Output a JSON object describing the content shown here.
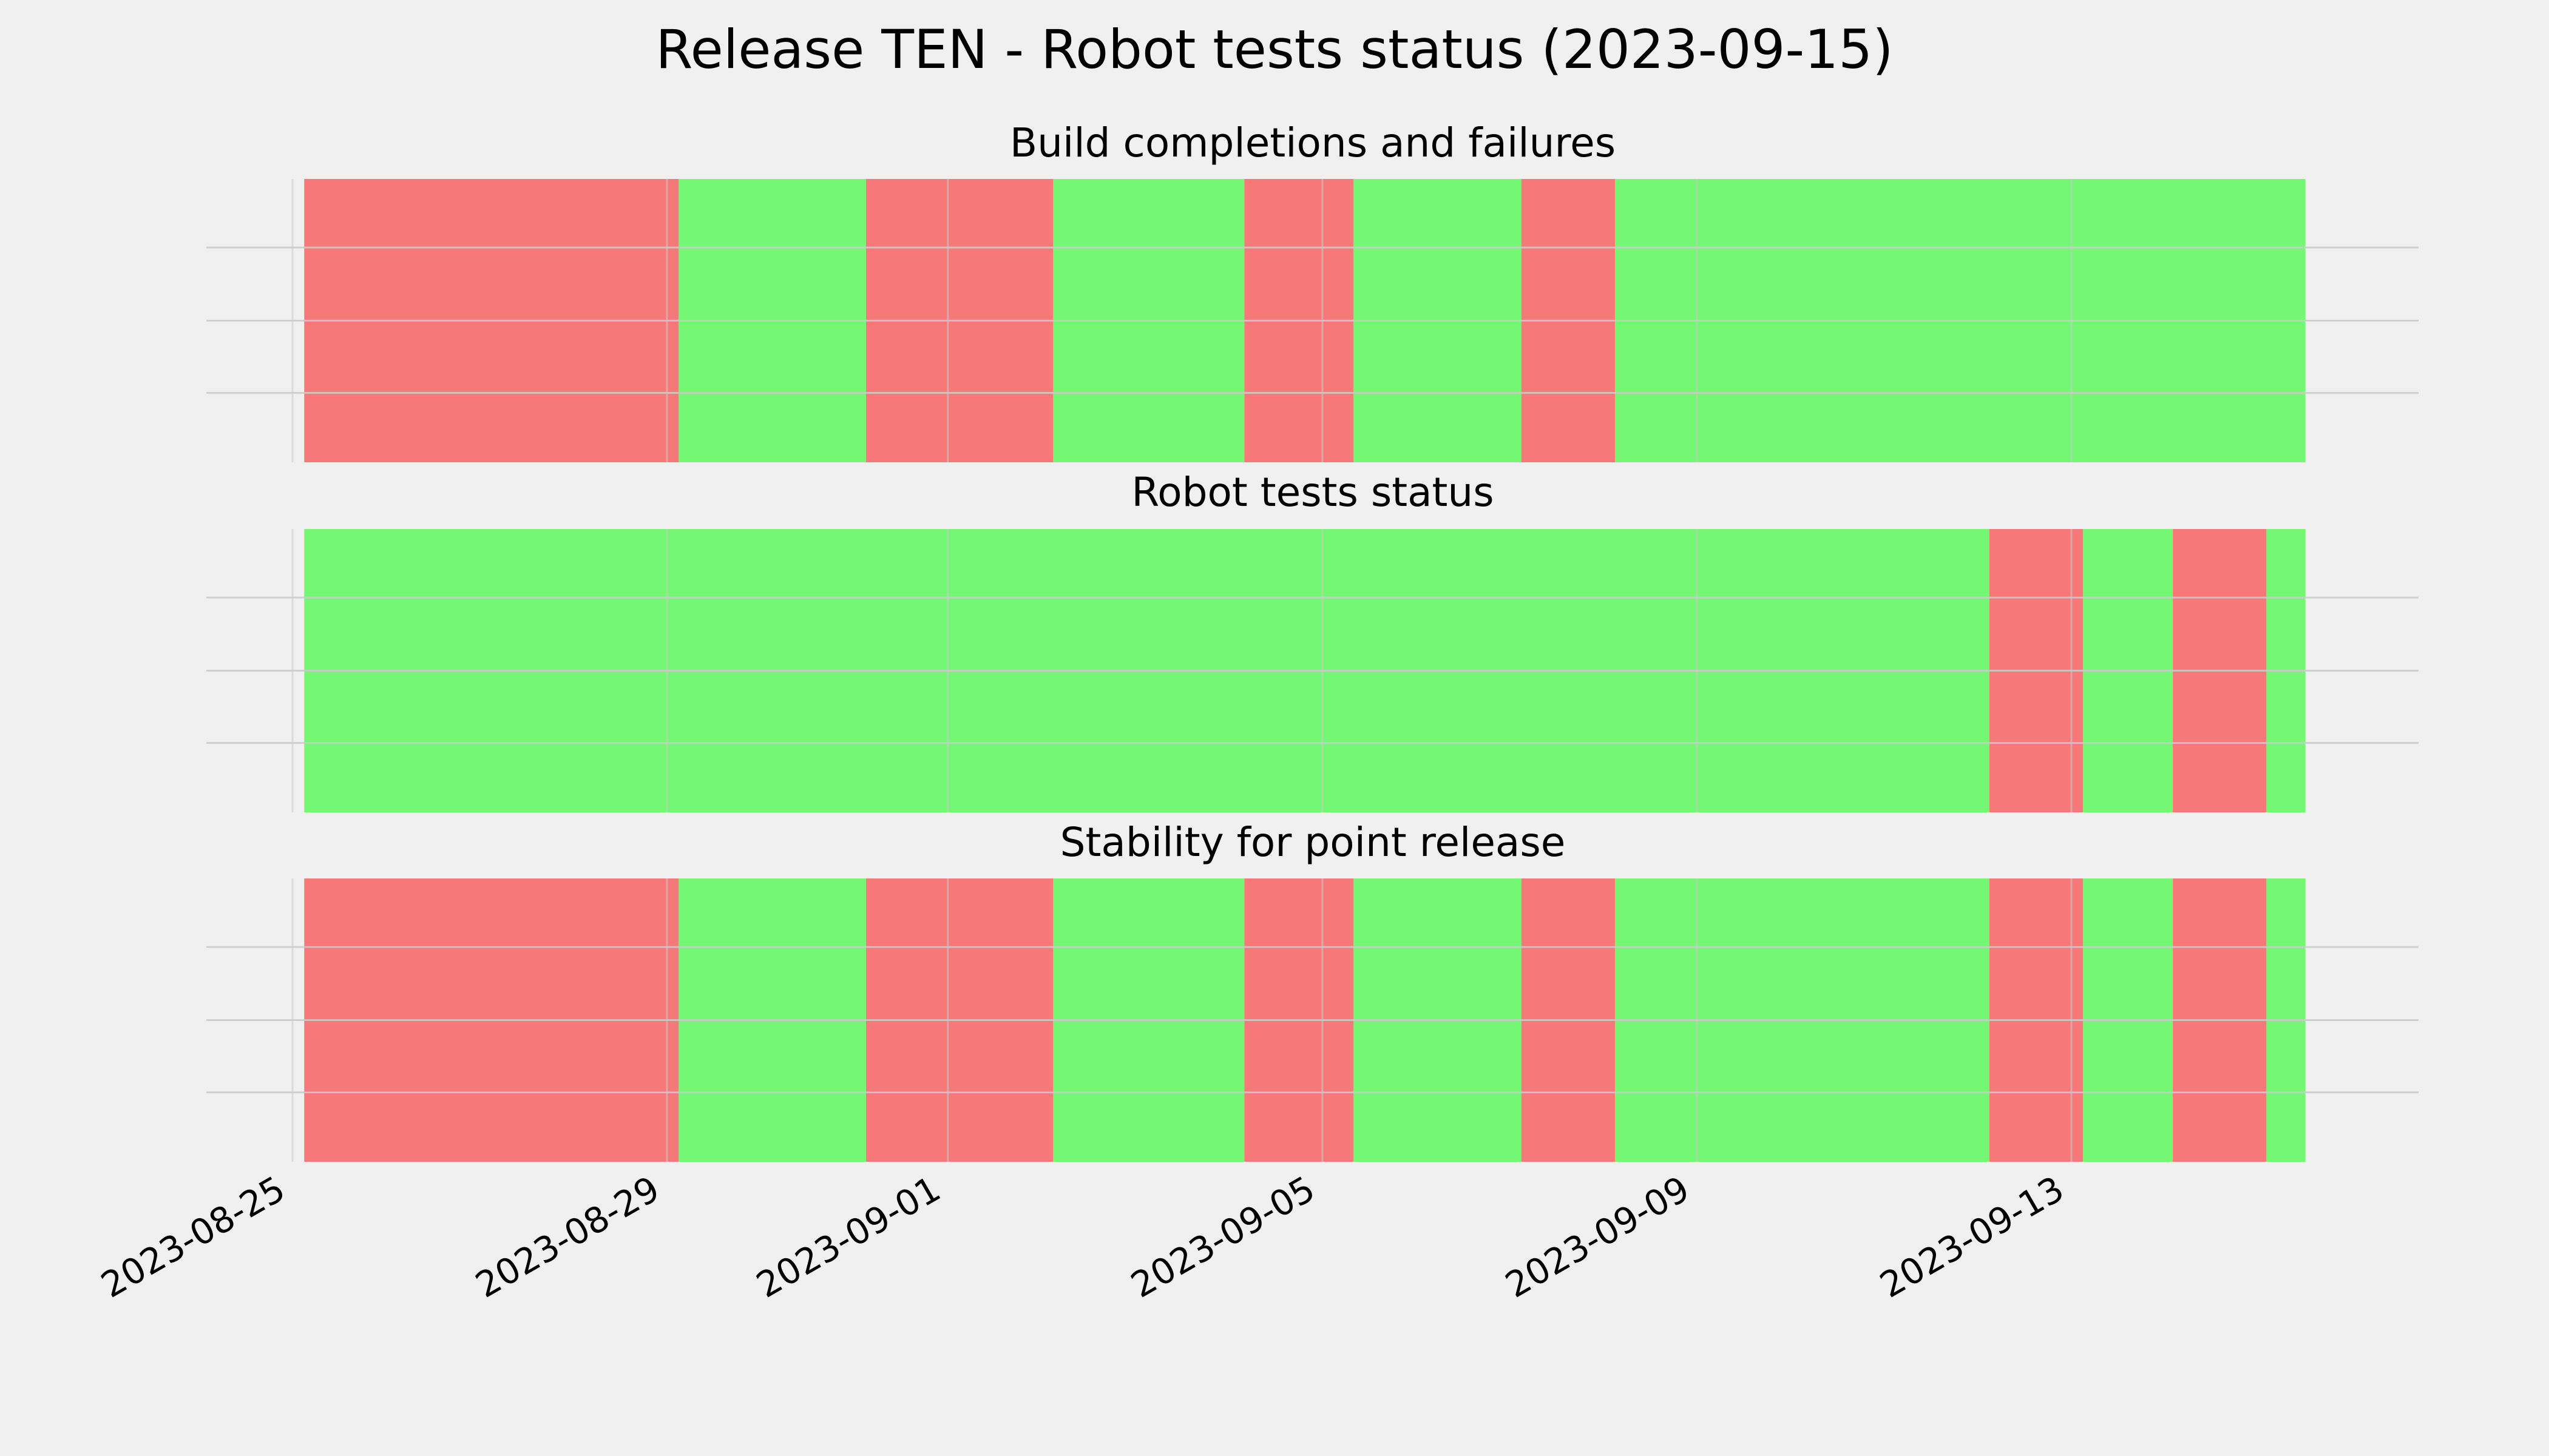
{
  "chart_data": {
    "type": "timeline",
    "title": "Release TEN - Robot tests status (2023-09-15)",
    "colors": {
      "pass": "#74f874",
      "fail": "#f77878",
      "background": "#f0f0f0",
      "grid": "#cbcbcb"
    },
    "x_range": [
      "2023-08-25",
      "2023-09-15"
    ],
    "x_ticks": [
      "2023-08-25",
      "2023-08-29",
      "2023-09-01",
      "2023-09-05",
      "2023-09-09",
      "2023-09-13"
    ],
    "x_tick_labels": [
      "2023-08-25",
      "2023-08-29",
      "2023-09-01",
      "2023-09-05",
      "2023-09-09",
      "2023-09-13"
    ],
    "panels": [
      {
        "title": "Build completions and failures",
        "segments": [
          {
            "start": "2023-08-25 03:00",
            "end": "2023-08-29 03:00",
            "status": "fail"
          },
          {
            "start": "2023-08-29 03:00",
            "end": "2023-08-31 03:00",
            "status": "pass"
          },
          {
            "start": "2023-08-31 03:00",
            "end": "2023-09-02 03:00",
            "status": "fail"
          },
          {
            "start": "2023-09-02 03:00",
            "end": "2023-09-04 04:00",
            "status": "pass"
          },
          {
            "start": "2023-09-04 04:00",
            "end": "2023-09-05 08:00",
            "status": "fail"
          },
          {
            "start": "2023-09-05 08:00",
            "end": "2023-09-07 03:00",
            "status": "pass"
          },
          {
            "start": "2023-09-07 03:00",
            "end": "2023-09-08 03:00",
            "status": "fail"
          },
          {
            "start": "2023-09-08 03:00",
            "end": "2023-09-15 12:00",
            "status": "pass"
          }
        ]
      },
      {
        "title": "Robot tests status",
        "segments": [
          {
            "start": "2023-08-25 03:00",
            "end": "2023-09-12 03:00",
            "status": "pass"
          },
          {
            "start": "2023-09-12 03:00",
            "end": "2023-09-13 03:00",
            "status": "fail"
          },
          {
            "start": "2023-09-13 03:00",
            "end": "2023-09-14 02:00",
            "status": "pass"
          },
          {
            "start": "2023-09-14 02:00",
            "end": "2023-09-15 02:00",
            "status": "fail"
          },
          {
            "start": "2023-09-15 02:00",
            "end": "2023-09-15 12:00",
            "status": "pass"
          }
        ]
      },
      {
        "title": "Stability for point release",
        "segments": [
          {
            "start": "2023-08-25 03:00",
            "end": "2023-08-29 03:00",
            "status": "fail"
          },
          {
            "start": "2023-08-29 03:00",
            "end": "2023-08-31 03:00",
            "status": "pass"
          },
          {
            "start": "2023-08-31 03:00",
            "end": "2023-09-02 03:00",
            "status": "fail"
          },
          {
            "start": "2023-09-02 03:00",
            "end": "2023-09-04 04:00",
            "status": "pass"
          },
          {
            "start": "2023-09-04 04:00",
            "end": "2023-09-05 08:00",
            "status": "fail"
          },
          {
            "start": "2023-09-05 08:00",
            "end": "2023-09-07 03:00",
            "status": "pass"
          },
          {
            "start": "2023-09-07 03:00",
            "end": "2023-09-08 03:00",
            "status": "fail"
          },
          {
            "start": "2023-09-08 03:00",
            "end": "2023-09-12 03:00",
            "status": "pass"
          },
          {
            "start": "2023-09-12 03:00",
            "end": "2023-09-13 03:00",
            "status": "fail"
          },
          {
            "start": "2023-09-13 03:00",
            "end": "2023-09-14 02:00",
            "status": "pass"
          },
          {
            "start": "2023-09-14 02:00",
            "end": "2023-09-15 02:00",
            "status": "fail"
          },
          {
            "start": "2023-09-15 02:00",
            "end": "2023-09-15 12:00",
            "status": "pass"
          }
        ]
      }
    ],
    "grid": true,
    "legend": "none"
  }
}
